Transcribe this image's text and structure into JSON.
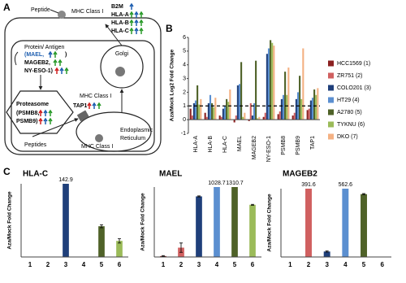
{
  "panels": [
    "A",
    "B",
    "C"
  ],
  "diagram": {
    "peptide_top": "Peptide",
    "mhc_top": "MHC Class I",
    "hla": [
      "B2M",
      "HLA-A",
      "HLA-B",
      "HLA-C"
    ],
    "protein": "Protein/ Antigen",
    "antigens": [
      "(MAEL,",
      "MAGEB2,",
      "NY-ESO-1)"
    ],
    "antigen_close": ")",
    "proteasome": "Proteasome",
    "proteasome_genes": [
      "(PSMB8,",
      "PSMB9)"
    ],
    "golgi": "Golgi",
    "mhc_golgi": "MHC Class I",
    "tap": "TAP1",
    "peptides": "Peptides",
    "er": [
      "Endoplasmic",
      "Reticulum"
    ],
    "mhc_er": "MHC Class I"
  },
  "chart_data": [
    {
      "type": "grouped_bar",
      "ylabel": "Aza/Mock Log2 Fold Change",
      "categories": [
        "HLA-A",
        "HLA-B",
        "HLA-C",
        "MAEL",
        "MAGEB2",
        "NY-ESO-1",
        "PSMB8",
        "PSMB9",
        "TAP1"
      ],
      "series": [
        {
          "name": "HCC1569 (1)",
          "color": "#8b2020",
          "values": [
            0.8,
            0.5,
            0.3,
            -0.2,
            -0.1,
            0.2,
            0.4,
            0.3,
            0.7
          ]
        },
        {
          "name": "ZR751 (2)",
          "color": "#d06060",
          "values": [
            0.3,
            0.2,
            0.2,
            0.3,
            1.2,
            0.5,
            0.6,
            0.5,
            0.8
          ]
        },
        {
          "name": "COLO201 (3)",
          "color": "#1f3f7a",
          "values": [
            1.2,
            1.2,
            0.8,
            2.5,
            0.3,
            4.8,
            1.5,
            1.5,
            1.4
          ]
        },
        {
          "name": "HT29 (4)",
          "color": "#5b8fd0",
          "values": [
            1.4,
            1.8,
            1.0,
            2.6,
            1.2,
            5.2,
            1.8,
            2.0,
            1.6
          ]
        },
        {
          "name": "A2780 (5)",
          "color": "#4f6228",
          "values": [
            2.5,
            1.2,
            1.5,
            4.2,
            4.3,
            5.8,
            3.5,
            3.2,
            2.2
          ]
        },
        {
          "name": "TYKNU (6)",
          "color": "#9bbb59",
          "values": [
            1.1,
            0.9,
            1.3,
            0.2,
            0.1,
            5.6,
            1.8,
            1.5,
            1.8
          ]
        },
        {
          "name": "DKO (7)",
          "color": "#f4b183",
          "values": [
            1.5,
            1.6,
            2.2,
            0.5,
            0.2,
            5.4,
            3.8,
            5.2,
            2.3
          ]
        }
      ],
      "ylim": [
        -1,
        6
      ],
      "yticks": [
        -1,
        0,
        1,
        2,
        3,
        4,
        5,
        6
      ],
      "hline": 1
    },
    {
      "type": "bar",
      "title": "HLA-C",
      "ylabel": "Aza/Mock Fold Change",
      "categories": [
        "1",
        "2",
        "3",
        "4",
        "5",
        "6"
      ],
      "values": [
        0,
        0,
        142.9,
        0,
        2.1,
        1.1
      ],
      "value_labels": [
        null,
        null,
        "142.9",
        null,
        null,
        null
      ],
      "errors": [
        0,
        0,
        0,
        0,
        0.1,
        0.15
      ],
      "colors": [
        "#8b2020",
        "#d06060",
        "#1f3f7a",
        "#5b8fd0",
        "#4f6228",
        "#9bbb59"
      ],
      "ylim": [
        0,
        5
      ]
    },
    {
      "type": "bar",
      "title": "MAEL",
      "ylabel": "Aza/Mock Fold Change",
      "categories": [
        "1",
        "2",
        "3",
        "4",
        "5",
        "6"
      ],
      "values": [
        2,
        20,
        130,
        1028.7,
        1310.7,
        112
      ],
      "value_labels": [
        null,
        null,
        null,
        "1028.7",
        "1310.7",
        null
      ],
      "errors": [
        1,
        10,
        1,
        0,
        0,
        1
      ],
      "colors": [
        "#8b2020",
        "#d06060",
        "#1f3f7a",
        "#5b8fd0",
        "#4f6228",
        "#9bbb59"
      ],
      "ylim": [
        0,
        150
      ]
    },
    {
      "type": "bar",
      "title": "MAGEB2",
      "ylabel": "Aza/Mock Fold Change",
      "categories": [
        "1",
        "2",
        "3",
        "4",
        "5",
        "6"
      ],
      "values": [
        0,
        391.6,
        20,
        562.6,
        230,
        0
      ],
      "value_labels": [
        null,
        "391.6",
        null,
        "562.6",
        null,
        null
      ],
      "errors": [
        0,
        0,
        2,
        0,
        2,
        0
      ],
      "colors": [
        "#8b2020",
        "#d06060",
        "#1f3f7a",
        "#5b8fd0",
        "#4f6228",
        "#9bbb59"
      ],
      "ylim": [
        0,
        250
      ]
    }
  ]
}
